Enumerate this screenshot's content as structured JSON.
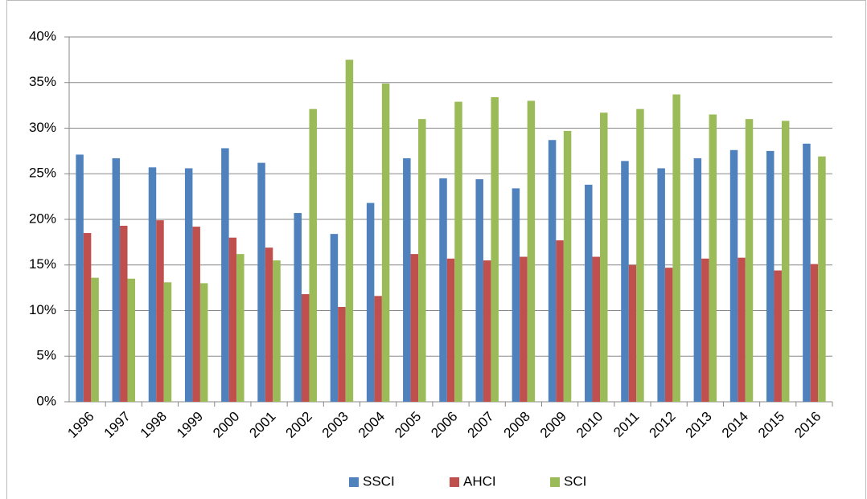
{
  "chart_data": {
    "type": "bar",
    "categories": [
      "1996",
      "1997",
      "1998",
      "1999",
      "2000",
      "2001",
      "2002",
      "2003",
      "2004",
      "2005",
      "2006",
      "2007",
      "2008",
      "2009",
      "2010",
      "2011",
      "2012",
      "2013",
      "2014",
      "2015",
      "2016"
    ],
    "series": [
      {
        "name": "SSCI",
        "color": "#4f81bd",
        "values": [
          27.1,
          26.7,
          25.7,
          25.6,
          27.8,
          26.2,
          20.7,
          18.4,
          21.8,
          26.7,
          24.5,
          24.4,
          23.4,
          28.7,
          23.8,
          26.4,
          25.6,
          26.7,
          27.6,
          27.5,
          28.3
        ]
      },
      {
        "name": "AHCI",
        "color": "#c0504d",
        "values": [
          18.5,
          19.3,
          19.9,
          19.2,
          18.0,
          16.9,
          11.8,
          10.4,
          11.6,
          16.2,
          15.7,
          15.5,
          15.9,
          17.7,
          15.9,
          15.0,
          14.7,
          15.7,
          15.8,
          14.4,
          15.1
        ]
      },
      {
        "name": "SCI",
        "color": "#9bbb59",
        "values": [
          13.6,
          13.5,
          13.1,
          13.0,
          16.2,
          15.5,
          32.1,
          37.5,
          34.9,
          31.0,
          32.9,
          33.4,
          33.0,
          29.7,
          31.7,
          32.1,
          33.7,
          31.5,
          31.0,
          30.8,
          26.9
        ]
      }
    ],
    "ylim": [
      0,
      40
    ],
    "yticks": [
      {
        "value": 0,
        "label": "0%"
      },
      {
        "value": 5,
        "label": "5%"
      },
      {
        "value": 10,
        "label": "10%"
      },
      {
        "value": 15,
        "label": "15%"
      },
      {
        "value": 20,
        "label": "20%"
      },
      {
        "value": 25,
        "label": "25%"
      },
      {
        "value": 30,
        "label": "30%"
      },
      {
        "value": 35,
        "label": "35%"
      },
      {
        "value": 40,
        "label": "40%"
      }
    ],
    "grid": true,
    "legend": "bottom"
  }
}
